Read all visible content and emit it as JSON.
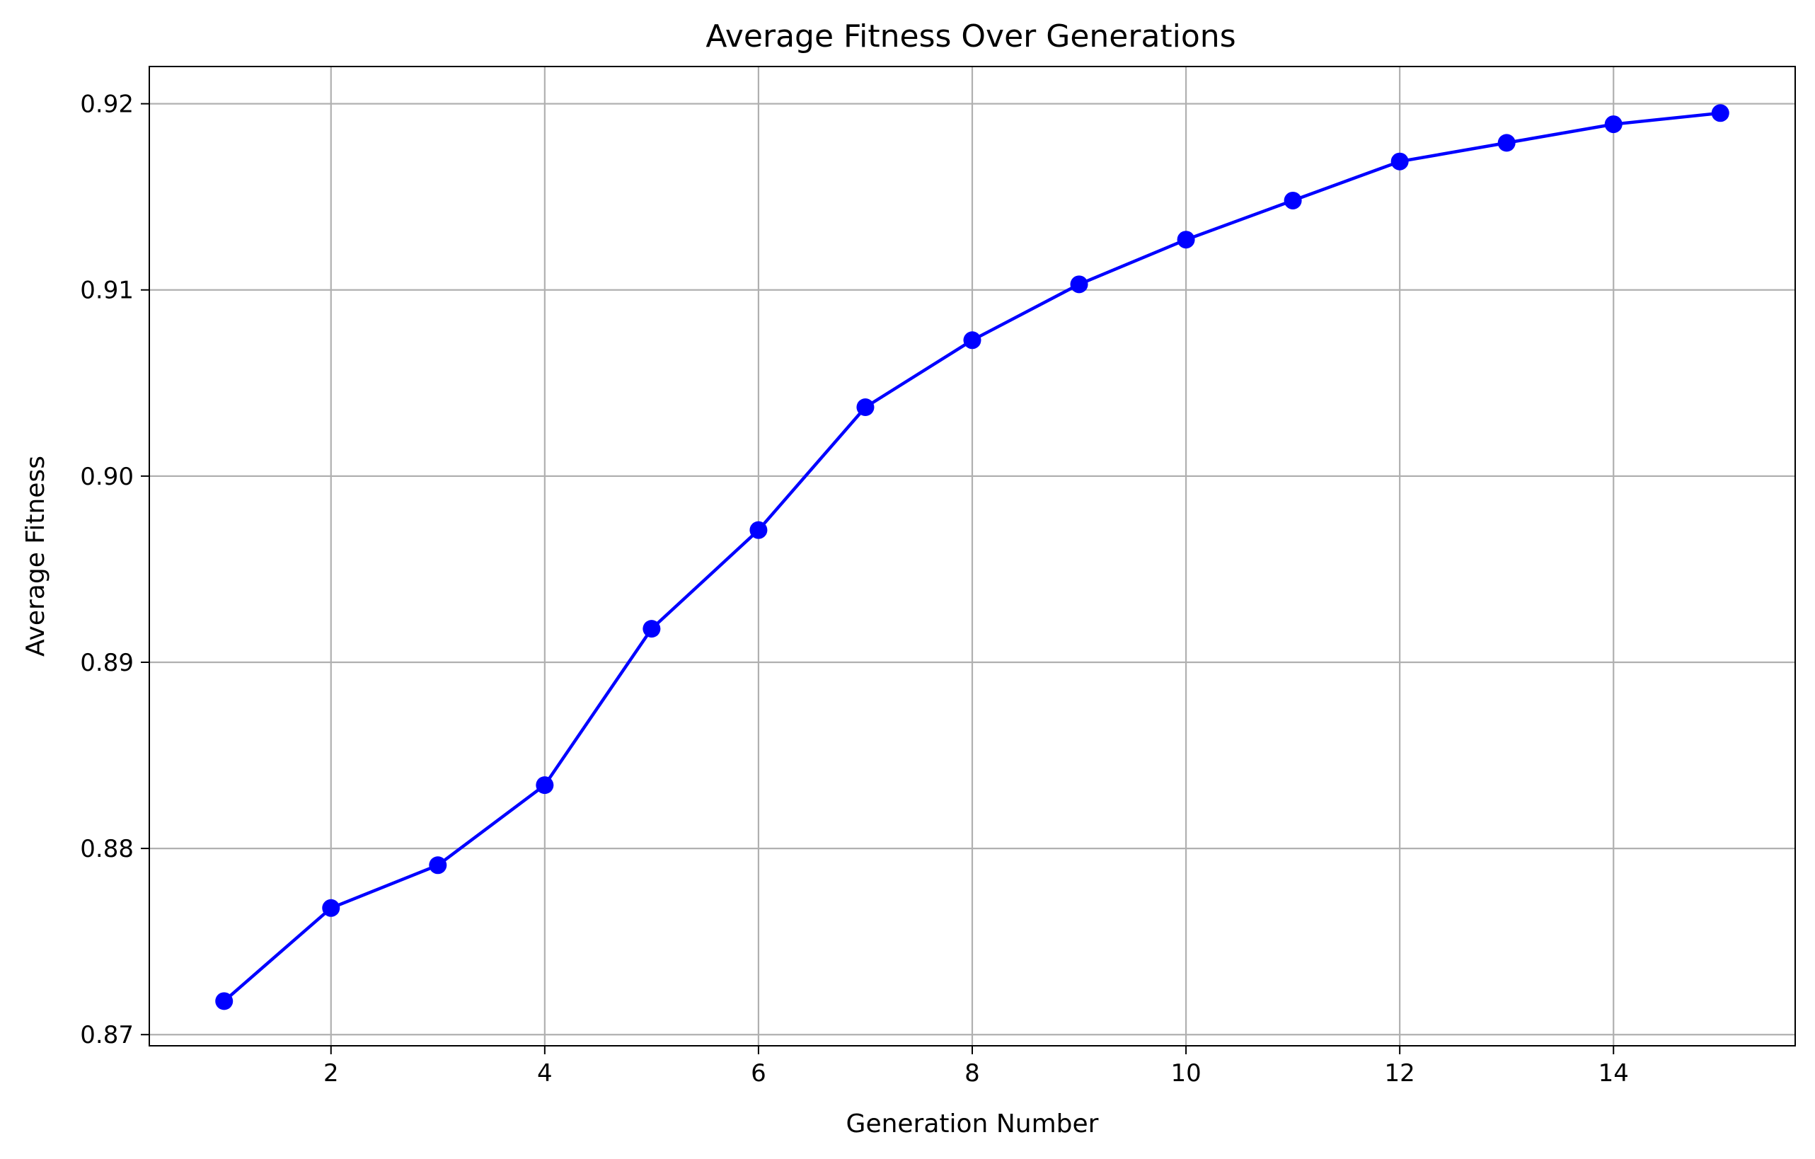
{
  "chart_data": {
    "type": "line",
    "title": "Average Fitness Over Generations",
    "xlabel": "Generation Number",
    "ylabel": "Average Fitness",
    "xlim": [
      0.3,
      15.7
    ],
    "ylim": [
      0.8694,
      0.922
    ],
    "xticks": [
      2,
      4,
      6,
      8,
      10,
      12,
      14
    ],
    "xtick_labels": [
      "2",
      "4",
      "6",
      "8",
      "10",
      "12",
      "14"
    ],
    "yticks": [
      0.87,
      0.88,
      0.89,
      0.9,
      0.91,
      0.92
    ],
    "ytick_labels": [
      "0.87",
      "0.88",
      "0.89",
      "0.90",
      "0.91",
      "0.92"
    ],
    "grid": true,
    "marker": "circle",
    "color": "#0000ff",
    "series": [
      {
        "x": [
          1,
          2,
          3,
          4,
          5,
          6,
          7,
          8,
          9,
          10,
          11,
          12,
          13,
          14,
          15
        ],
        "values": [
          0.8718,
          0.8768,
          0.8791,
          0.8834,
          0.8918,
          0.8971,
          0.9037,
          0.9073,
          0.9103,
          0.9127,
          0.9148,
          0.9169,
          0.9179,
          0.9189,
          0.9195
        ]
      }
    ]
  }
}
